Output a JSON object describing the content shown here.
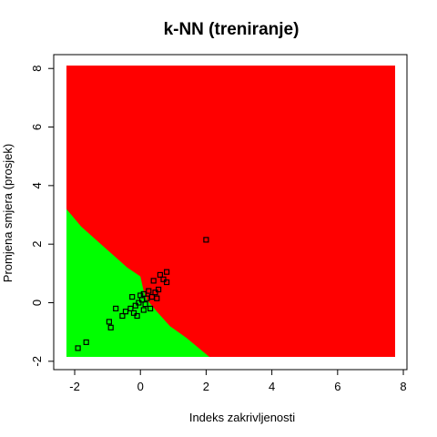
{
  "chart_data": {
    "type": "scatter",
    "title": "k-NN (treniranje)",
    "xlabel": "Indeks zakrivljenosti",
    "ylabel": "Promjena smjera (prosjek)",
    "xlim": [
      -2.25,
      7.75
    ],
    "ylim": [
      -1.85,
      8.1
    ],
    "x_ticks": [
      "-2",
      "0",
      "2",
      "4",
      "6",
      "8"
    ],
    "y_ticks": [
      "-2",
      "0",
      "2",
      "4",
      "6",
      "8"
    ],
    "grid": false,
    "regions": {
      "background_class_color": "#ff0000",
      "lower_left_class_color": "#00ff00",
      "green_boundary": [
        [
          -2.25,
          4.0
        ],
        [
          -2.25,
          3.2
        ],
        [
          -1.8,
          2.6
        ],
        [
          -1.2,
          2.0
        ],
        [
          -0.8,
          1.6
        ],
        [
          -0.4,
          1.2
        ],
        [
          0.0,
          0.9
        ],
        [
          0.1,
          0.4
        ],
        [
          0.2,
          0.1
        ],
        [
          0.5,
          -0.3
        ],
        [
          0.9,
          -0.8
        ],
        [
          1.4,
          -1.2
        ],
        [
          2.1,
          -1.85
        ]
      ]
    },
    "points": [
      {
        "x": 2.0,
        "y": 2.15
      },
      {
        "x": -1.9,
        "y": -1.55
      },
      {
        "x": -1.65,
        "y": -1.35
      },
      {
        "x": -0.95,
        "y": -0.65
      },
      {
        "x": -0.9,
        "y": -0.85
      },
      {
        "x": -0.75,
        "y": -0.2
      },
      {
        "x": -0.55,
        "y": -0.45
      },
      {
        "x": -0.45,
        "y": -0.3
      },
      {
        "x": -0.3,
        "y": -0.2
      },
      {
        "x": -0.25,
        "y": 0.2
      },
      {
        "x": -0.2,
        "y": -0.35
      },
      {
        "x": -0.15,
        "y": -0.1
      },
      {
        "x": -0.1,
        "y": -0.45
      },
      {
        "x": -0.05,
        "y": 0.0
      },
      {
        "x": 0.0,
        "y": 0.25
      },
      {
        "x": 0.05,
        "y": 0.1
      },
      {
        "x": 0.1,
        "y": -0.25
      },
      {
        "x": 0.1,
        "y": 0.3
      },
      {
        "x": 0.15,
        "y": -0.05
      },
      {
        "x": 0.2,
        "y": 0.15
      },
      {
        "x": 0.25,
        "y": 0.4
      },
      {
        "x": 0.3,
        "y": -0.2
      },
      {
        "x": 0.35,
        "y": 0.2
      },
      {
        "x": 0.4,
        "y": 0.75
      },
      {
        "x": 0.45,
        "y": 0.35
      },
      {
        "x": 0.5,
        "y": 0.15
      },
      {
        "x": 0.55,
        "y": 0.45
      },
      {
        "x": 0.6,
        "y": 0.95
      },
      {
        "x": 0.7,
        "y": 0.8
      },
      {
        "x": 0.8,
        "y": 1.05
      },
      {
        "x": 0.8,
        "y": 0.7
      }
    ]
  }
}
